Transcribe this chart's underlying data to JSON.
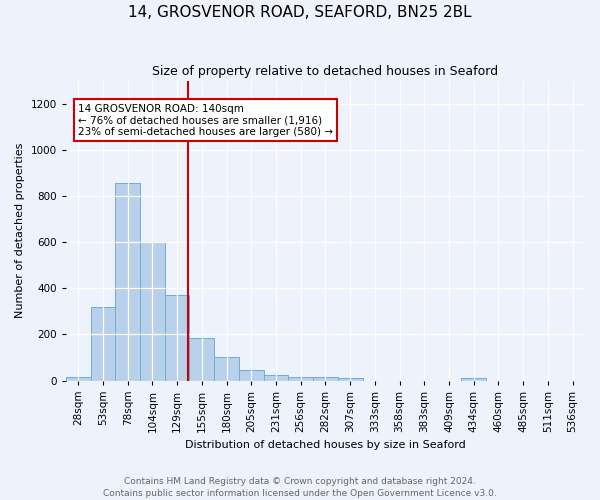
{
  "title": "14, GROSVENOR ROAD, SEAFORD, BN25 2BL",
  "subtitle": "Size of property relative to detached houses in Seaford",
  "xlabel": "Distribution of detached houses by size in Seaford",
  "ylabel": "Number of detached properties",
  "footnote1": "Contains HM Land Registry data © Crown copyright and database right 2024.",
  "footnote2": "Contains public sector information licensed under the Open Government Licence v3.0.",
  "bar_labels": [
    "28sqm",
    "53sqm",
    "78sqm",
    "104sqm",
    "129sqm",
    "155sqm",
    "180sqm",
    "205sqm",
    "231sqm",
    "256sqm",
    "282sqm",
    "307sqm",
    "333sqm",
    "358sqm",
    "383sqm",
    "409sqm",
    "434sqm",
    "460sqm",
    "485sqm",
    "511sqm",
    "536sqm"
  ],
  "bar_values": [
    15,
    320,
    855,
    600,
    370,
    185,
    100,
    47,
    22,
    17,
    17,
    10,
    0,
    0,
    0,
    0,
    10,
    0,
    0,
    0,
    0
  ],
  "bar_color": "#b8d0ea",
  "bar_edge_color": "#6aaed6",
  "ylim": [
    0,
    1300
  ],
  "yticks": [
    0,
    200,
    400,
    600,
    800,
    1000,
    1200
  ],
  "annotation_text_line1": "14 GROSVENOR ROAD: 140sqm",
  "annotation_text_line2": "← 76% of detached houses are smaller (1,916)",
  "annotation_text_line3": "23% of semi-detached houses are larger (580) →",
  "bg_color": "#eef2fb",
  "grid_color": "#ffffff",
  "annotation_box_color": "#ffffff",
  "annotation_box_edge": "#cc0000",
  "vline_color": "#cc0000",
  "title_fontsize": 11,
  "subtitle_fontsize": 9,
  "ylabel_fontsize": 8,
  "xlabel_fontsize": 8,
  "tick_fontsize": 7.5,
  "footnote_fontsize": 6.5,
  "footnote_color": "#666666"
}
